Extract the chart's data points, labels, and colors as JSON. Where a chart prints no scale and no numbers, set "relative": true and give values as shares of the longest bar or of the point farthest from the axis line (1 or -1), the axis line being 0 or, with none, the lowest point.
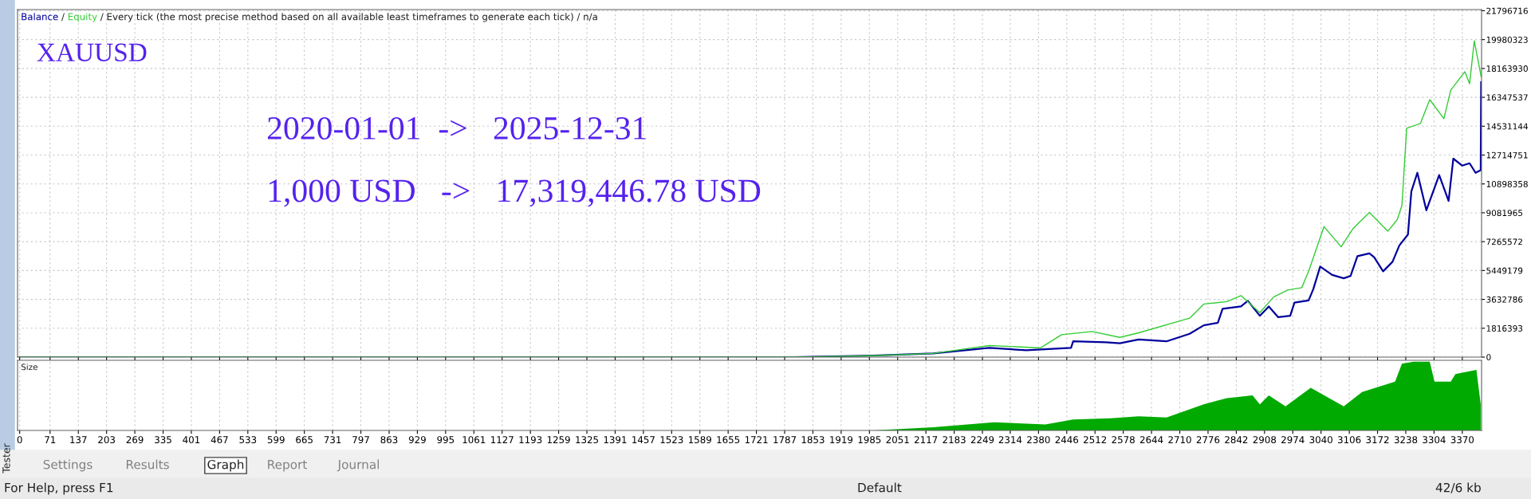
{
  "chart_data": [
    {
      "type": "line",
      "title": "Every tick (the most precise method based on all available least timeframes to generate each tick) / n/a",
      "series": [
        {
          "name": "Balance",
          "color": "#00009c",
          "x": [
            0,
            1808,
            1993,
            2134,
            2265,
            2352,
            2456,
            2461,
            2537,
            2570,
            2614,
            2679,
            2733,
            2766,
            2799,
            2810,
            2853,
            2869,
            2897,
            2918,
            2940,
            2968,
            2978,
            3011,
            3022,
            3038,
            3066,
            3093,
            3109,
            3125,
            3153,
            3164,
            3185,
            3207,
            3223,
            3243,
            3251,
            3265,
            3286,
            3316,
            3338,
            3349,
            3370,
            3387,
            3401,
            3413,
            3414
          ],
          "values": [
            0,
            0,
            90000,
            230000,
            580000,
            432000,
            580000,
            994000,
            935000,
            876000,
            1110000,
            994000,
            1470000,
            2000000,
            2160000,
            3040000,
            3190000,
            3540000,
            2600000,
            3190000,
            2510000,
            2600000,
            3430000,
            3570000,
            4280000,
            5700000,
            5170000,
            4960000,
            5110000,
            6350000,
            6530000,
            6290000,
            5400000,
            6000000,
            7030000,
            7710000,
            10430000,
            11600000,
            9240000,
            11460000,
            9830000,
            12490000,
            12050000,
            12200000,
            11600000,
            11760000,
            17300000
          ]
        },
        {
          "name": "Equity",
          "color": "#33cc33",
          "x": [
            0,
            1808,
            1993,
            2134,
            2265,
            2385,
            2434,
            2505,
            2570,
            2614,
            2733,
            2766,
            2820,
            2853,
            2897,
            2929,
            2962,
            2995,
            3011,
            3047,
            3087,
            3114,
            3153,
            3196,
            3218,
            3229,
            3240,
            3272,
            3294,
            3327,
            3343,
            3376,
            3387,
            3398,
            3414
          ],
          "values": [
            0,
            0,
            90000,
            230000,
            730000,
            580000,
            1410000,
            1610000,
            1240000,
            1530000,
            2450000,
            3340000,
            3490000,
            3870000,
            2800000,
            3780000,
            4220000,
            4370000,
            5400000,
            8210000,
            6940000,
            8060000,
            9100000,
            7920000,
            8650000,
            9540000,
            14400000,
            14700000,
            16200000,
            15000000,
            16800000,
            17960000,
            17200000,
            19900000,
            17660000
          ]
        }
      ],
      "xlim": [
        -5,
        3415
      ],
      "ylim": [
        0,
        21870000
      ],
      "xticks": [
        0,
        71,
        137,
        203,
        269,
        335,
        401,
        467,
        533,
        599,
        665,
        731,
        797,
        863,
        929,
        995,
        1061,
        1127,
        1193,
        1259,
        1325,
        1391,
        1457,
        1523,
        1589,
        1655,
        1721,
        1787,
        1853,
        1919,
        1985,
        2051,
        2117,
        2183,
        2249,
        2314,
        2380,
        2446,
        2512,
        2578,
        2644,
        2710,
        2776,
        2842,
        2908,
        2974,
        3040,
        3106,
        3172,
        3238,
        3304,
        3370
      ],
      "yticks": [
        0,
        1816393,
        3632786,
        5449179,
        7265572,
        9081965,
        10898358,
        12714751,
        14531144,
        16347537,
        18163930,
        19980323,
        21796716
      ],
      "tick_labels": "y",
      "grid": true,
      "legend": "top left",
      "annotations": [
        "XAUUSD",
        "2020-01-01  ->   2025-12-31",
        "1,000 USD   ->   17,319,446.78 USD",
        "/",
        "/"
      ]
    },
    {
      "type": "area",
      "title": "Size",
      "relative": true,
      "series": [
        {
          "color": "#00aa00",
          "x": [
            0,
            1808,
            1993,
            2134,
            2276,
            2396,
            2461,
            2548,
            2614,
            2679,
            2766,
            2820,
            2880,
            2897,
            2918,
            2957,
            3016,
            3093,
            3136,
            3213,
            3229,
            3256,
            3294,
            3305,
            3343,
            3354,
            3403,
            3413
          ],
          "values": [
            0,
            0,
            0,
            0.047,
            0.118,
            0.088,
            0.159,
            0.176,
            0.206,
            0.188,
            0.38,
            0.47,
            0.51,
            0.38,
            0.51,
            0.35,
            0.62,
            0.35,
            0.56,
            0.71,
            0.97,
            1.0,
            1.0,
            0.71,
            0.71,
            0.82,
            0.88,
            0.38
          ]
        }
      ],
      "xlim": [
        -5,
        3415
      ],
      "xticks": [
        0,
        71,
        137,
        203,
        269,
        335,
        401,
        467,
        533,
        599,
        665,
        731,
        797,
        863,
        929,
        995,
        1061,
        1127,
        1193,
        1259,
        1325,
        1391,
        1457,
        1523,
        1589,
        1655,
        1721,
        1787,
        1853,
        1919,
        1985,
        2051,
        2117,
        2183,
        2249,
        2314,
        2380,
        2446,
        2512,
        2578,
        2644,
        2710,
        2776,
        2842,
        2908,
        2974,
        3040,
        3106,
        3172,
        3238,
        3304,
        3370
      ],
      "tick_labels": "x",
      "grid": true,
      "annotations": [
        "Tester",
        "Settings",
        "Results",
        "Graph",
        "Report",
        "Journal",
        "For Help, press F1",
        "Default",
        "42/6 kb"
      ]
    }
  ]
}
